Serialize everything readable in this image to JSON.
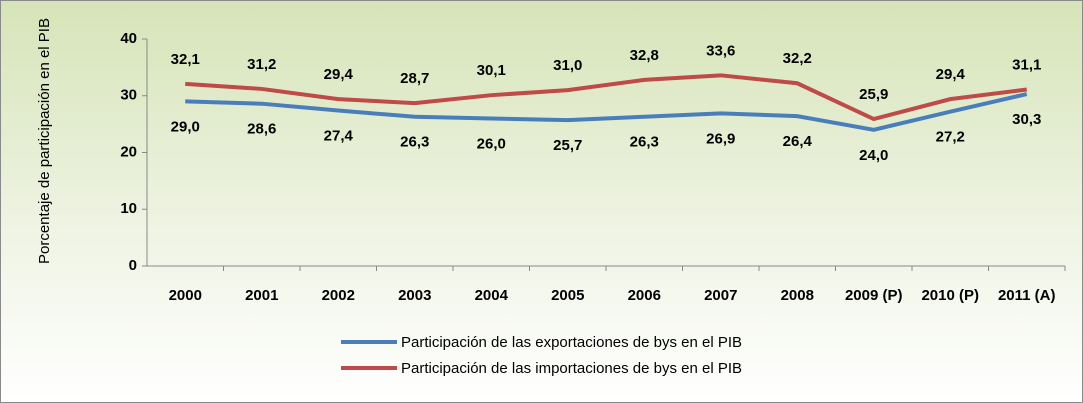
{
  "chart_data": {
    "type": "line",
    "y_label": "Porcentaje de participación en el PIB",
    "categories": [
      "2000",
      "2001",
      "2002",
      "2003",
      "2004",
      "2005",
      "2006",
      "2007",
      "2008",
      "2009 (P)",
      "2010 (P)",
      "2011 (A)"
    ],
    "series": [
      {
        "name": "Participación de las exportaciones de bys en el PIB",
        "color": "#4a7ebb",
        "values": [
          29.0,
          28.6,
          27.4,
          26.3,
          26.0,
          25.7,
          26.3,
          26.9,
          26.4,
          24.0,
          27.2,
          30.3
        ],
        "value_labels": [
          "29,0",
          "28,6",
          "27,4",
          "26,3",
          "26,0",
          "25,7",
          "26,3",
          "26,9",
          "26,4",
          "24,0",
          "27,2",
          "30,3"
        ]
      },
      {
        "name": "Participación de las importaciones de bys en el PIB",
        "color": "#be4b48",
        "values": [
          32.1,
          31.2,
          29.4,
          28.7,
          30.1,
          31.0,
          32.8,
          33.6,
          32.2,
          25.9,
          29.4,
          31.1
        ],
        "value_labels": [
          "32,1",
          "31,2",
          "29,4",
          "28,7",
          "30,1",
          "31,0",
          "32,8",
          "33,6",
          "32,2",
          "25,9",
          "29,4",
          "31,1"
        ]
      }
    ],
    "ylim": [
      0,
      40
    ],
    "yticks": [
      0,
      10,
      20,
      30,
      40
    ],
    "grid": false,
    "legend": "bottom"
  }
}
